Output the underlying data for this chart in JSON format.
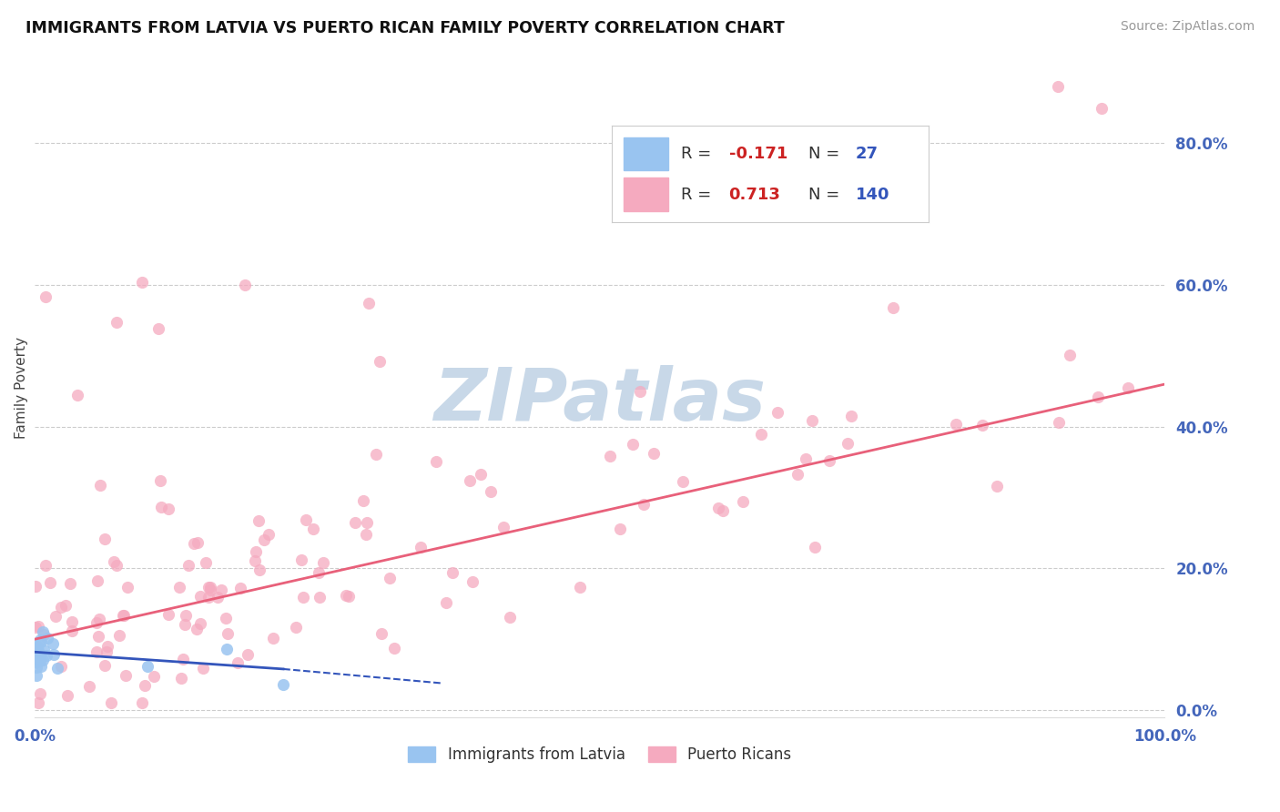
{
  "title": "IMMIGRANTS FROM LATVIA VS PUERTO RICAN FAMILY POVERTY CORRELATION CHART",
  "source_text": "Source: ZipAtlas.com",
  "ylabel": "Family Poverty",
  "right_ytick_values": [
    0.0,
    0.2,
    0.4,
    0.6,
    0.8
  ],
  "xlim": [
    0,
    1.0
  ],
  "ylim": [
    -0.01,
    0.92
  ],
  "legend_blue_R": "-0.171",
  "legend_blue_N": "27",
  "legend_pink_R": "0.713",
  "legend_pink_N": "140",
  "legend_blue_label": "Immigrants from Latvia",
  "legend_pink_label": "Puerto Ricans",
  "blue_scatter_color": "#99C4F0",
  "pink_scatter_color": "#F5AABF",
  "blue_line_color": "#3355BB",
  "pink_line_color": "#E8607A",
  "legend_R_color": "#CC2222",
  "legend_N_color": "#3355BB",
  "watermark_color": "#C8D8E8",
  "title_color": "#111111",
  "source_color": "#999999",
  "ylabel_color": "#444444",
  "axis_label_color": "#4466BB",
  "grid_color": "#CCCCCC",
  "background_color": "#FFFFFF"
}
